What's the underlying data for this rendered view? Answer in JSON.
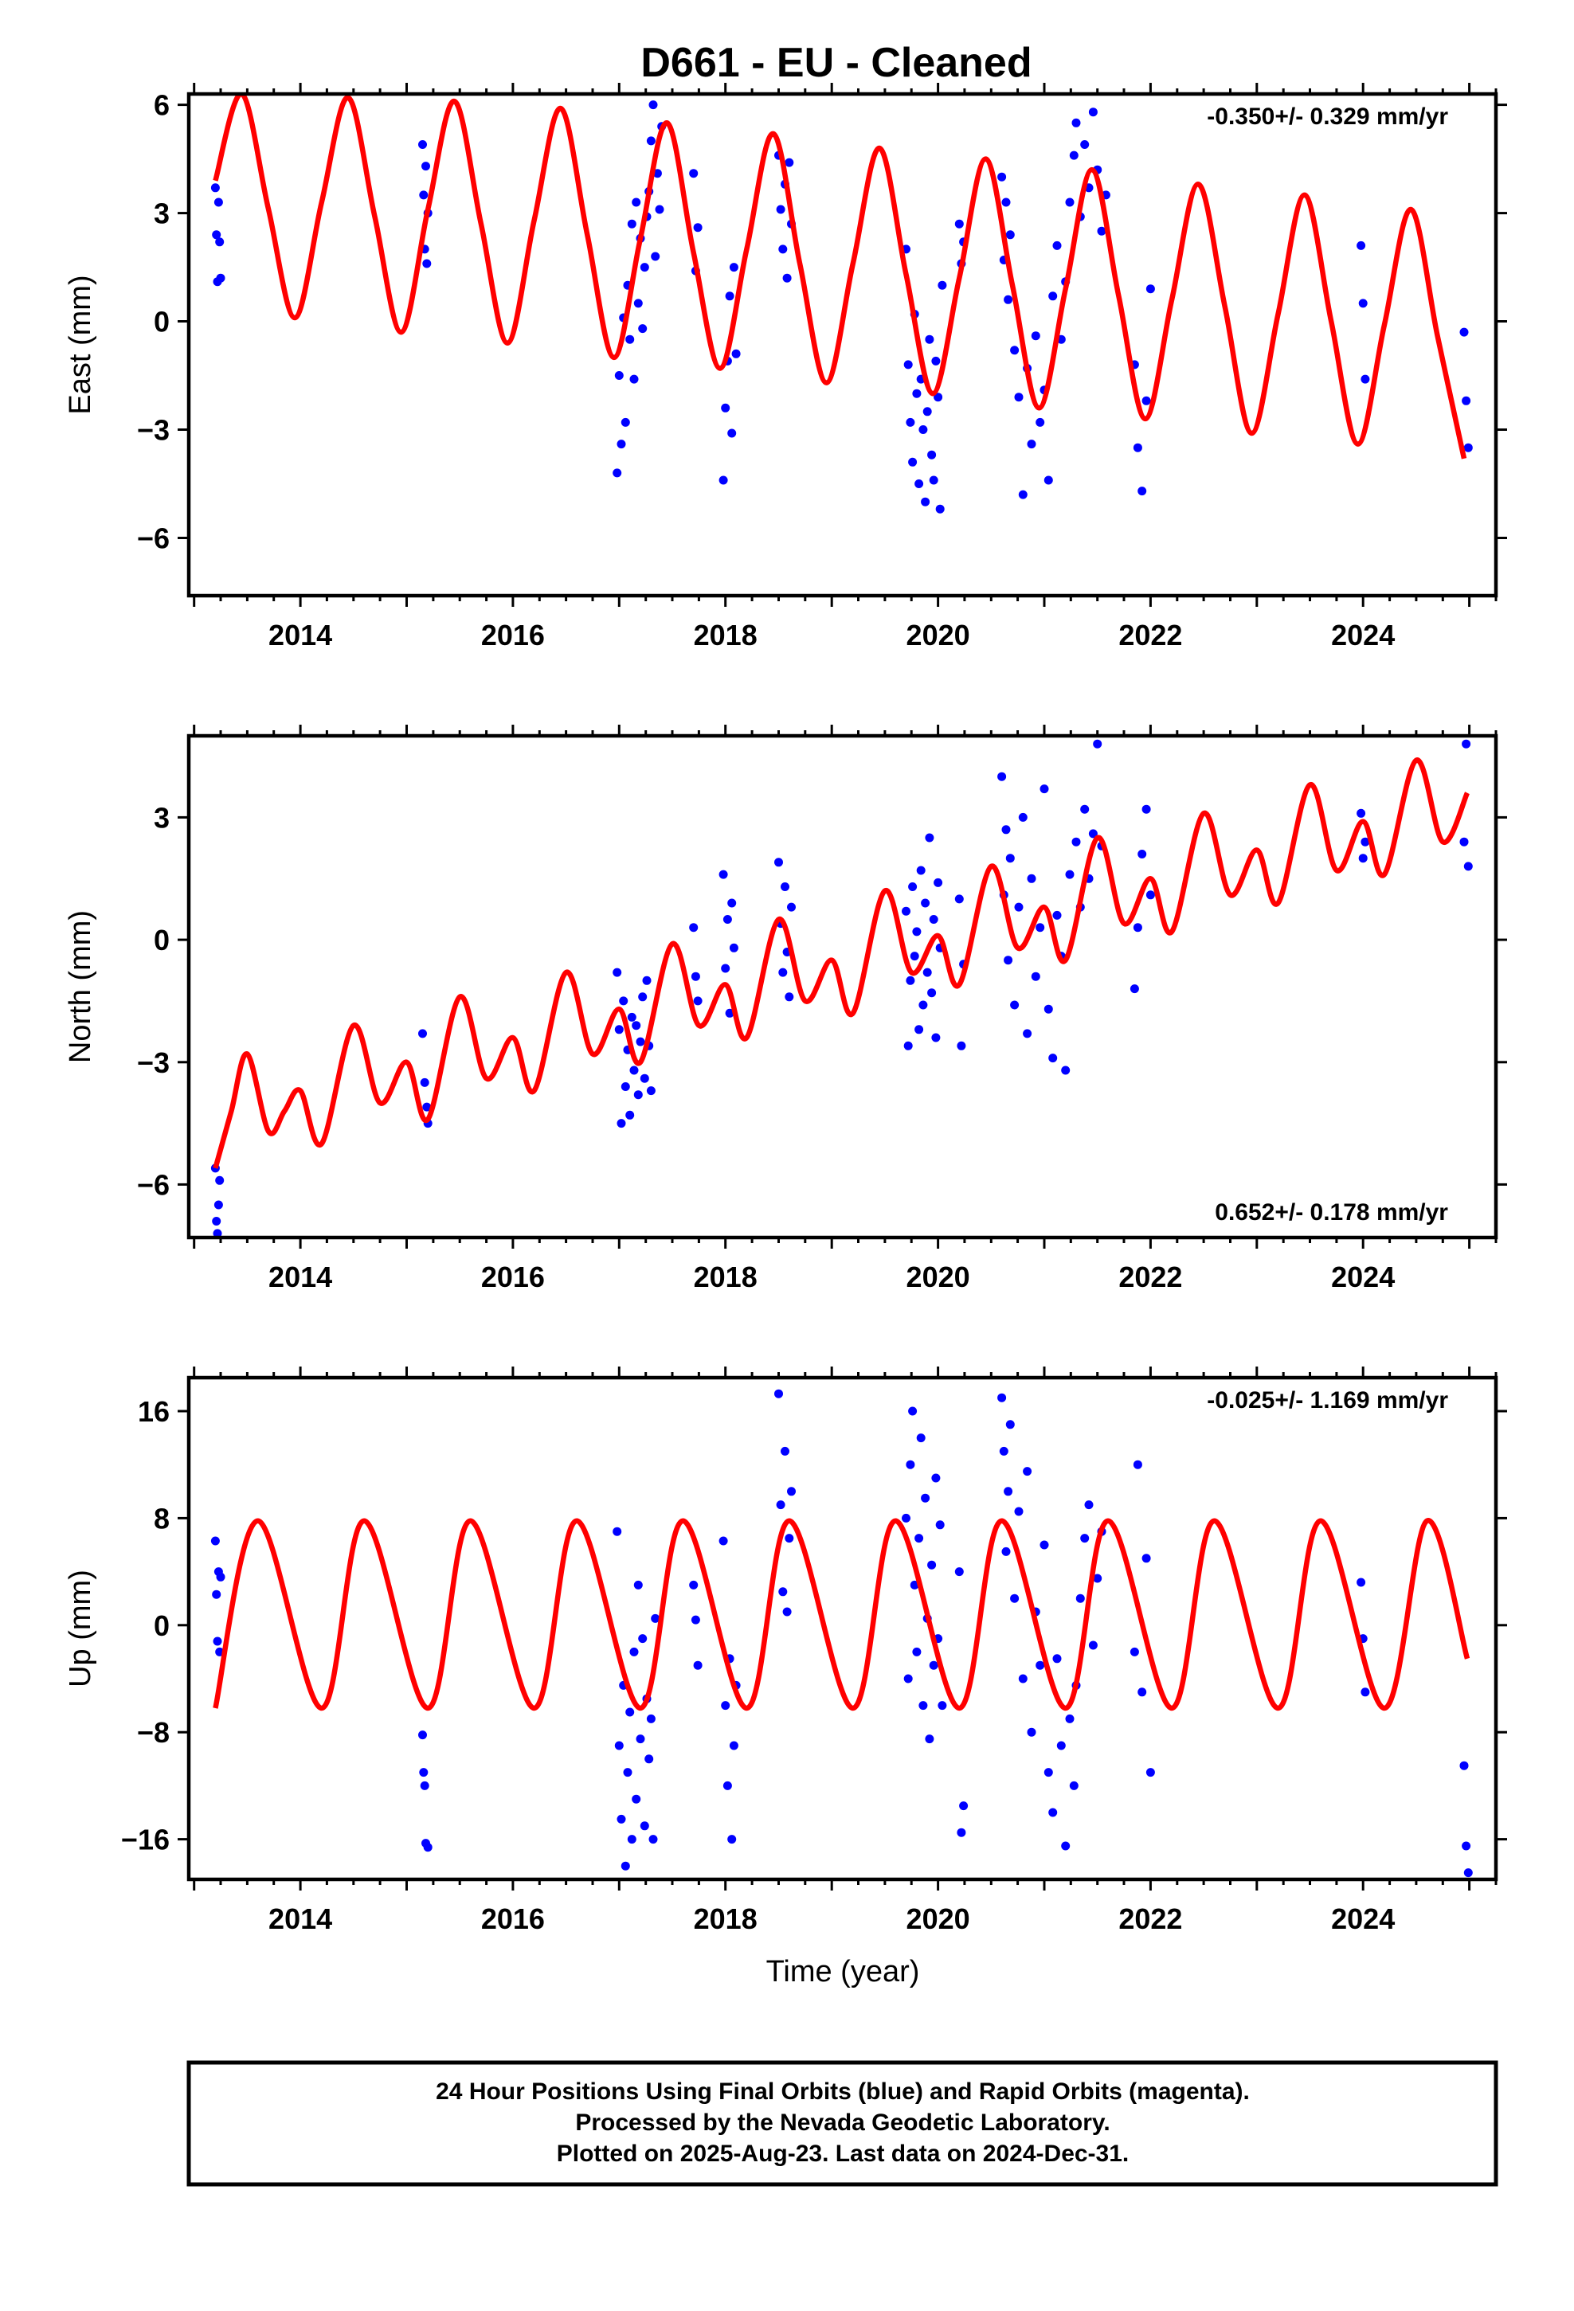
{
  "title": "D661  - EU - Cleaned",
  "x_axis_label": "Time (year)",
  "colors": {
    "data": "#0000ff",
    "model": "#ff0000",
    "axes": "#000000"
  },
  "footer": {
    "line1": "24 Hour Positions Using Final Orbits (blue) and Rapid Orbits (magenta).",
    "line2": "Processed by the Nevada Geodetic Laboratory.",
    "line3": "Plotted on 2025-Aug-23. Last data on 2024-Dec-31."
  },
  "chart_data": [
    {
      "type": "scatter",
      "component": "east",
      "ylabel": "East (mm)",
      "rate_label": "-0.350+/- 0.329 mm/yr",
      "rate_position": "top-right",
      "xlim": [
        2012.95,
        2025.25
      ],
      "ylim": [
        -7.6,
        6.3
      ],
      "xticks": [
        2014,
        2016,
        2018,
        2020,
        2022,
        2024
      ],
      "yticks": [
        -6,
        -3,
        0,
        3,
        6
      ],
      "ytick_labels": [
        "−6",
        "−3",
        "0",
        "3",
        "6"
      ],
      "grid": false,
      "model_curve": {
        "name": "model",
        "x": [
          2013.2,
          2013.45,
          2013.7,
          2013.95,
          2014.2,
          2014.45,
          2014.7,
          2014.95,
          2015.2,
          2015.45,
          2015.7,
          2015.95,
          2016.2,
          2016.45,
          2016.7,
          2016.95,
          2017.2,
          2017.45,
          2017.7,
          2017.95,
          2018.2,
          2018.45,
          2018.7,
          2018.95,
          2019.2,
          2019.45,
          2019.7,
          2019.95,
          2020.2,
          2020.45,
          2020.7,
          2020.95,
          2021.2,
          2021.45,
          2021.7,
          2021.95,
          2022.2,
          2022.45,
          2022.7,
          2022.95,
          2023.2,
          2023.45,
          2023.7,
          2023.95,
          2024.2,
          2024.45,
          2024.7,
          2024.95
        ],
        "y": [
          3.9,
          6.3,
          3.1,
          0.1,
          3.3,
          6.2,
          2.9,
          -0.3,
          3.1,
          6.1,
          2.7,
          -0.6,
          2.8,
          5.9,
          2.4,
          -1.0,
          2.3,
          5.5,
          1.9,
          -1.3,
          2.0,
          5.2,
          1.6,
          -1.7,
          1.6,
          4.8,
          1.3,
          -2.0,
          1.2,
          4.5,
          1.0,
          -2.4,
          0.9,
          4.2,
          0.7,
          -2.7,
          0.6,
          3.8,
          0.4,
          -3.1,
          0.2,
          3.5,
          0.0,
          -3.4,
          -0.1,
          3.1,
          -0.4,
          -3.8
        ]
      },
      "series": [
        {
          "name": "",
          "x": [
            2013.2,
            2013.21,
            2013.22,
            2013.23,
            2013.24,
            2013.25,
            2015.15,
            2015.16,
            2015.17,
            2015.18,
            2015.19,
            2015.2,
            2016.98,
            2017.0,
            2017.02,
            2017.04,
            2017.06,
            2017.08,
            2017.1,
            2017.12,
            2017.14,
            2017.16,
            2017.18,
            2017.2,
            2017.22,
            2017.24,
            2017.26,
            2017.28,
            2017.3,
            2017.32,
            2017.34,
            2017.36,
            2017.38,
            2017.4,
            2017.7,
            2017.72,
            2017.74,
            2017.98,
            2018.0,
            2018.02,
            2018.04,
            2018.06,
            2018.08,
            2018.1,
            2018.5,
            2018.52,
            2018.54,
            2018.56,
            2018.58,
            2018.6,
            2018.62,
            2019.7,
            2019.72,
            2019.74,
            2019.76,
            2019.78,
            2019.8,
            2019.82,
            2019.84,
            2019.86,
            2019.88,
            2019.9,
            2019.92,
            2019.94,
            2019.96,
            2019.98,
            2020.0,
            2020.02,
            2020.04,
            2020.2,
            2020.22,
            2020.24,
            2020.6,
            2020.62,
            2020.64,
            2020.66,
            2020.68,
            2020.72,
            2020.76,
            2020.8,
            2020.84,
            2020.88,
            2020.92,
            2020.96,
            2021.0,
            2021.04,
            2021.08,
            2021.12,
            2021.16,
            2021.2,
            2021.24,
            2021.28,
            2021.3,
            2021.34,
            2021.38,
            2021.42,
            2021.46,
            2021.5,
            2021.54,
            2021.58,
            2021.85,
            2021.88,
            2021.92,
            2021.96,
            2022.0,
            2023.98,
            2024.0,
            2024.02,
            2024.95,
            2024.97,
            2024.99
          ],
          "y": [
            3.7,
            2.4,
            1.1,
            3.3,
            2.2,
            1.2,
            4.9,
            3.5,
            2.0,
            4.3,
            1.6,
            3.0,
            -4.2,
            -1.5,
            -3.4,
            0.1,
            -2.8,
            1.0,
            -0.5,
            2.7,
            -1.6,
            3.3,
            0.5,
            2.3,
            -0.2,
            1.5,
            2.9,
            3.6,
            5.0,
            6.0,
            1.8,
            4.1,
            3.1,
            5.4,
            4.1,
            1.4,
            2.6,
            -4.4,
            -2.4,
            -1.1,
            0.7,
            -3.1,
            1.5,
            -0.9,
            4.6,
            3.1,
            2.0,
            3.8,
            1.2,
            4.4,
            2.7,
            2.0,
            -1.2,
            -2.8,
            -3.9,
            0.2,
            -2.0,
            -4.5,
            -1.6,
            -3.0,
            -5.0,
            -2.5,
            -0.5,
            -3.7,
            -4.4,
            -1.1,
            -2.1,
            -5.2,
            1.0,
            2.7,
            1.6,
            2.2,
            4.0,
            1.7,
            3.3,
            0.6,
            2.4,
            -0.8,
            -2.1,
            -4.8,
            -1.3,
            -3.4,
            -0.4,
            -2.8,
            -1.9,
            -4.4,
            0.7,
            2.1,
            -0.5,
            1.1,
            3.3,
            4.6,
            5.5,
            2.9,
            4.9,
            3.7,
            5.8,
            4.2,
            2.5,
            3.5,
            -1.2,
            -3.5,
            -4.7,
            -2.2,
            0.9,
            2.1,
            0.5,
            -1.6,
            -0.3,
            -2.2,
            -3.5
          ]
        }
      ]
    },
    {
      "type": "scatter",
      "component": "north",
      "ylabel": "North (mm)",
      "rate_label": "0.652+/- 0.178 mm/yr",
      "rate_position": "bottom-right",
      "xlim": [
        2012.95,
        2025.25
      ],
      "ylim": [
        -7.3,
        5.0
      ],
      "xticks": [
        2014,
        2016,
        2018,
        2020,
        2022,
        2024
      ],
      "yticks": [
        -6,
        -3,
        0,
        3
      ],
      "ytick_labels": [
        "−6",
        "−3",
        "0",
        "3"
      ],
      "grid": false,
      "model_curve": {
        "name": "model",
        "x": [
          2013.2,
          2013.35,
          2013.5,
          2013.7,
          2013.85,
          2014.0,
          2014.2,
          2014.5,
          2014.75,
          2015.0,
          2015.2,
          2015.5,
          2015.75,
          2016.0,
          2016.2,
          2016.5,
          2016.75,
          2017.0,
          2017.2,
          2017.5,
          2017.75,
          2018.0,
          2018.2,
          2018.5,
          2018.75,
          2019.0,
          2019.2,
          2019.5,
          2019.75,
          2020.0,
          2020.2,
          2020.5,
          2020.75,
          2021.0,
          2021.2,
          2021.5,
          2021.75,
          2022.0,
          2022.2,
          2022.5,
          2022.75,
          2023.0,
          2023.2,
          2023.5,
          2023.75,
          2024.0,
          2024.2,
          2024.5,
          2024.75,
          2024.98
        ],
        "y": [
          -5.6,
          -4.2,
          -2.8,
          -4.7,
          -4.2,
          -3.7,
          -5.0,
          -2.1,
          -4.0,
          -3.0,
          -4.4,
          -1.4,
          -3.4,
          -2.4,
          -3.7,
          -0.8,
          -2.8,
          -1.7,
          -3.0,
          -0.1,
          -2.1,
          -1.1,
          -2.4,
          0.5,
          -1.5,
          -0.5,
          -1.8,
          1.2,
          -0.8,
          0.1,
          -1.1,
          1.8,
          -0.2,
          0.8,
          -0.5,
          2.5,
          0.4,
          1.5,
          0.2,
          3.1,
          1.1,
          2.2,
          0.9,
          3.8,
          1.7,
          2.9,
          1.6,
          4.4,
          2.4,
          3.6
        ]
      },
      "series": [
        {
          "name": "",
          "x": [
            2013.2,
            2013.21,
            2013.22,
            2013.23,
            2013.24,
            2015.15,
            2015.17,
            2015.19,
            2015.2,
            2016.98,
            2017.0,
            2017.02,
            2017.04,
            2017.06,
            2017.08,
            2017.1,
            2017.12,
            2017.14,
            2017.16,
            2017.18,
            2017.2,
            2017.22,
            2017.24,
            2017.26,
            2017.28,
            2017.3,
            2017.7,
            2017.72,
            2017.74,
            2017.98,
            2018.0,
            2018.02,
            2018.04,
            2018.06,
            2018.08,
            2018.5,
            2018.52,
            2018.54,
            2018.56,
            2018.58,
            2018.6,
            2018.62,
            2019.7,
            2019.72,
            2019.74,
            2019.76,
            2019.78,
            2019.8,
            2019.82,
            2019.84,
            2019.86,
            2019.88,
            2019.9,
            2019.92,
            2019.94,
            2019.96,
            2019.98,
            2020.0,
            2020.02,
            2020.2,
            2020.22,
            2020.24,
            2020.6,
            2020.62,
            2020.64,
            2020.66,
            2020.68,
            2020.72,
            2020.76,
            2020.8,
            2020.84,
            2020.88,
            2020.92,
            2020.96,
            2021.0,
            2021.04,
            2021.08,
            2021.12,
            2021.16,
            2021.2,
            2021.24,
            2021.3,
            2021.34,
            2021.38,
            2021.42,
            2021.46,
            2021.5,
            2021.54,
            2021.85,
            2021.88,
            2021.92,
            2021.96,
            2022.0,
            2023.98,
            2024.0,
            2024.02,
            2024.95,
            2024.97,
            2024.99
          ],
          "y": [
            -5.6,
            -6.9,
            -7.2,
            -6.5,
            -5.9,
            -2.3,
            -3.5,
            -4.1,
            -4.5,
            -0.8,
            -2.2,
            -4.5,
            -1.5,
            -3.6,
            -2.7,
            -4.3,
            -1.9,
            -3.2,
            -2.1,
            -3.8,
            -2.5,
            -1.4,
            -3.4,
            -1.0,
            -2.6,
            -3.7,
            0.3,
            -0.9,
            -1.5,
            1.6,
            -0.7,
            0.5,
            -1.8,
            0.9,
            -0.2,
            1.9,
            0.4,
            -0.8,
            1.3,
            -0.3,
            -1.4,
            0.8,
            0.7,
            -2.6,
            -1.0,
            1.3,
            -0.4,
            0.2,
            -2.2,
            1.7,
            -1.6,
            0.9,
            -0.8,
            2.5,
            -1.3,
            0.5,
            -2.4,
            1.4,
            -0.2,
            1.0,
            -2.6,
            -0.6,
            4.0,
            1.1,
            2.7,
            -0.5,
            2.0,
            -1.6,
            0.8,
            3.0,
            -2.3,
            1.5,
            -0.9,
            0.3,
            3.7,
            -1.7,
            -2.9,
            0.6,
            -0.4,
            -3.2,
            1.6,
            2.4,
            0.8,
            3.2,
            1.5,
            2.6,
            4.8,
            2.3,
            -1.2,
            0.3,
            2.1,
            3.2,
            1.1,
            3.1,
            2.0,
            2.4,
            2.4,
            4.8,
            1.8
          ]
        }
      ]
    },
    {
      "type": "scatter",
      "component": "up",
      "ylabel": "Up (mm)",
      "rate_label": "-0.025+/- 1.169 mm/yr",
      "rate_position": "top-right",
      "xlim": [
        2012.95,
        2025.25
      ],
      "ylim": [
        -19.0,
        18.5
      ],
      "xticks": [
        2014,
        2016,
        2018,
        2020,
        2022,
        2024
      ],
      "yticks": [
        -16,
        -8,
        0,
        8,
        16
      ],
      "ytick_labels": [
        "−16",
        "−8",
        "0",
        "8",
        "16"
      ],
      "grid": false,
      "model_curve": {
        "name": "model",
        "x": [
          2013.2,
          2013.6,
          2014.2,
          2014.6,
          2015.2,
          2015.6,
          2016.2,
          2016.6,
          2017.2,
          2017.6,
          2018.2,
          2018.6,
          2019.2,
          2019.6,
          2020.2,
          2020.6,
          2021.2,
          2021.6,
          2022.2,
          2022.6,
          2023.2,
          2023.6,
          2024.2,
          2024.6,
          2024.98
        ],
        "y": [
          -6.2,
          7.8,
          -6.2,
          7.8,
          -6.2,
          7.8,
          -6.2,
          7.8,
          -6.2,
          7.8,
          -6.2,
          7.8,
          -6.2,
          7.8,
          -6.2,
          7.8,
          -6.2,
          7.8,
          -6.2,
          7.8,
          -6.2,
          7.8,
          -6.2,
          7.8,
          -2.5
        ]
      },
      "series": [
        {
          "name": "",
          "x": [
            2013.2,
            2013.21,
            2013.22,
            2013.23,
            2013.24,
            2013.25,
            2015.15,
            2015.16,
            2015.17,
            2015.18,
            2015.2,
            2016.98,
            2017.0,
            2017.02,
            2017.04,
            2017.06,
            2017.08,
            2017.1,
            2017.12,
            2017.14,
            2017.16,
            2017.18,
            2017.2,
            2017.22,
            2017.24,
            2017.26,
            2017.28,
            2017.3,
            2017.32,
            2017.34,
            2017.7,
            2017.72,
            2017.74,
            2017.98,
            2018.0,
            2018.02,
            2018.04,
            2018.06,
            2018.08,
            2018.1,
            2018.5,
            2018.52,
            2018.54,
            2018.56,
            2018.58,
            2018.6,
            2018.62,
            2019.7,
            2019.72,
            2019.74,
            2019.76,
            2019.78,
            2019.8,
            2019.82,
            2019.84,
            2019.86,
            2019.88,
            2019.9,
            2019.92,
            2019.94,
            2019.96,
            2019.98,
            2020.0,
            2020.02,
            2020.04,
            2020.2,
            2020.22,
            2020.24,
            2020.6,
            2020.62,
            2020.64,
            2020.66,
            2020.68,
            2020.72,
            2020.76,
            2020.8,
            2020.84,
            2020.88,
            2020.92,
            2020.96,
            2021.0,
            2021.04,
            2021.08,
            2021.12,
            2021.16,
            2021.2,
            2021.24,
            2021.28,
            2021.3,
            2021.34,
            2021.38,
            2021.42,
            2021.46,
            2021.5,
            2021.54,
            2021.85,
            2021.88,
            2021.92,
            2021.96,
            2022.0,
            2023.98,
            2024.0,
            2024.02,
            2024.95,
            2024.97,
            2024.99
          ],
          "y": [
            6.3,
            2.3,
            -1.2,
            4.0,
            -2.0,
            3.6,
            -8.2,
            -11.0,
            -12.0,
            -16.3,
            -16.6,
            7.0,
            -9.0,
            -14.5,
            -4.5,
            -18.0,
            -11.0,
            -6.5,
            -16.0,
            -2.0,
            -13.0,
            3.0,
            -8.5,
            -1.0,
            -15.0,
            -5.5,
            -10.0,
            -7.0,
            -16.0,
            0.5,
            3.0,
            0.4,
            -3.0,
            6.3,
            -6.0,
            -12.0,
            -2.5,
            -16.0,
            -9.0,
            -4.5,
            17.3,
            9.0,
            2.5,
            13.0,
            1.0,
            6.5,
            10.0,
            8.0,
            -4.0,
            12.0,
            16.0,
            3.0,
            -2.0,
            6.5,
            14.0,
            -6.0,
            9.5,
            0.5,
            -8.5,
            4.5,
            -3.0,
            11.0,
            -1.0,
            7.5,
            -6.0,
            4.0,
            -15.5,
            -13.5,
            17.0,
            13.0,
            5.5,
            10.0,
            15.0,
            2.0,
            8.5,
            -4.0,
            11.5,
            -8.0,
            1.0,
            -3.0,
            6.0,
            -11.0,
            -14.0,
            -2.5,
            -9.0,
            -16.5,
            -7.0,
            -12.0,
            -4.5,
            2.0,
            6.5,
            9.0,
            -1.5,
            3.5,
            7.0,
            -2.0,
            12.0,
            -5.0,
            5.0,
            -11.0,
            3.2,
            -1.0,
            -5.0,
            -10.5,
            -16.5,
            -18.5
          ]
        }
      ]
    }
  ]
}
